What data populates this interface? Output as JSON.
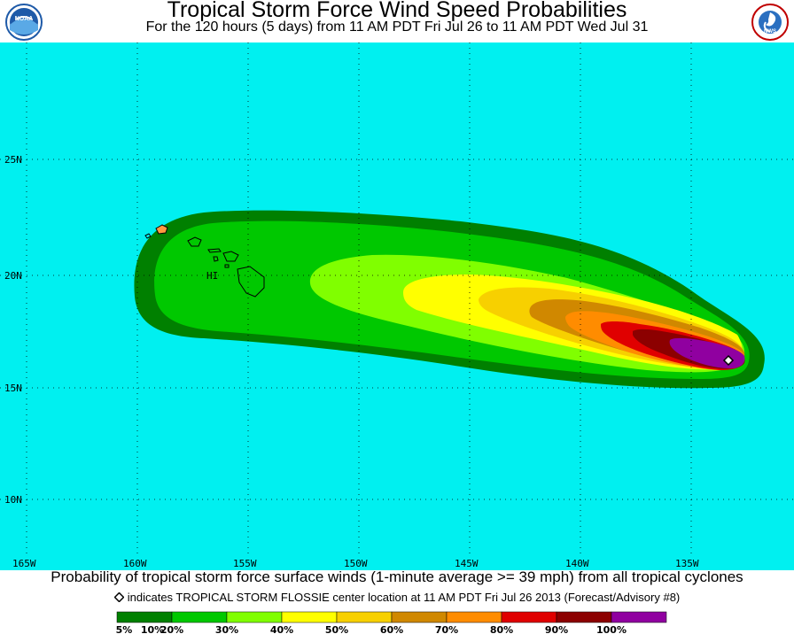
{
  "header": {
    "title": "Tropical Storm Force Wind Speed Probabilities",
    "subtitle": "For the 120 hours (5 days) from 11 AM PDT Fri Jul 26 to 11 AM PDT Wed Jul 31",
    "left_logo": {
      "text": "NOAA",
      "icon": "noaa-logo",
      "color": "#1e5aa8"
    },
    "right_logo": {
      "text": "NWS",
      "icon": "nws-logo",
      "color": "#2a6fc0"
    }
  },
  "map": {
    "ocean_color": "#00f0f0",
    "grid": true,
    "latitude_labels": [
      "25N",
      "20N",
      "15N",
      "10N"
    ],
    "longitude_labels": [
      "165W",
      "160W",
      "155W",
      "150W",
      "145W",
      "140W",
      "135W"
    ],
    "island_label": "HI",
    "storm_marker_icon": "diamond-marker-icon"
  },
  "footer": {
    "caption": "Probability of tropical storm force surface winds (1-minute average >= 39 mph) from all tropical cyclones",
    "indicator_text": "indicates TROPICAL STORM FLOSSIE center location at 11 AM PDT Fri Jul 26 2013 (Forecast/Advisory #8)"
  },
  "legend": {
    "bins": [
      {
        "color": "#008000"
      },
      {
        "color": "#00c800"
      },
      {
        "color": "#80ff00"
      },
      {
        "color": "#ffff00"
      },
      {
        "color": "#f7d000"
      },
      {
        "color": "#d08800"
      },
      {
        "color": "#ff8c00"
      },
      {
        "color": "#e00000"
      },
      {
        "color": "#8c0000"
      },
      {
        "color": "#9000a0"
      }
    ],
    "labels": [
      "5%",
      "10%",
      "20%",
      "30%",
      "40%",
      "50%",
      "60%",
      "70%",
      "80%",
      "90%",
      "100%"
    ]
  }
}
